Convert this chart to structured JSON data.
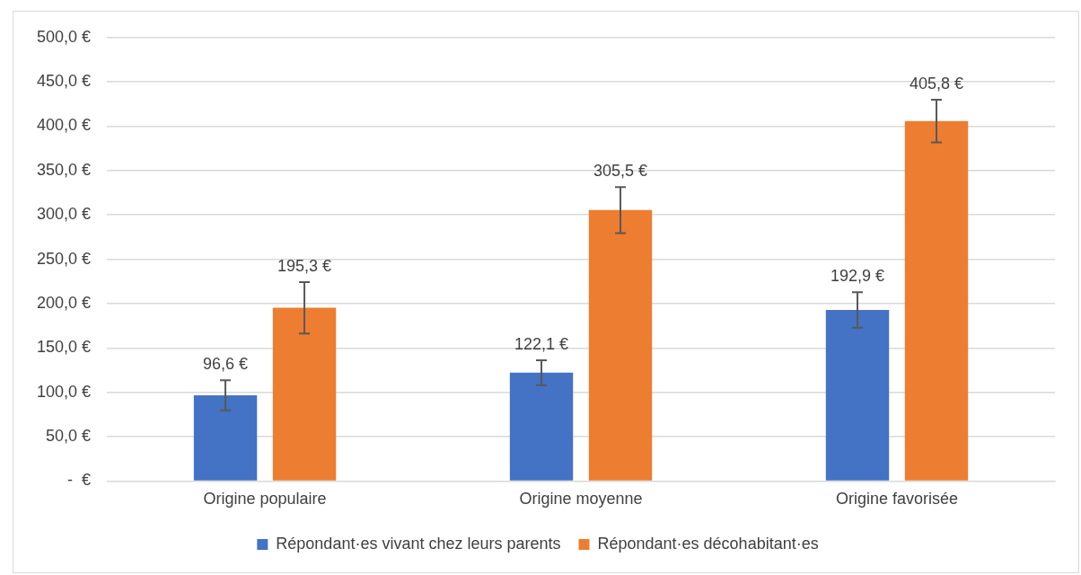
{
  "chart_data": {
    "type": "bar",
    "categories": [
      "Origine populaire",
      "Origine moyenne",
      "Origine favorisée"
    ],
    "series": [
      {
        "name": "Répondant·es vivant chez leurs parents",
        "color": "#4472c4",
        "values": [
          96.6,
          122.1,
          192.9
        ],
        "errors": [
          17,
          14,
          20
        ],
        "value_labels": [
          "96,6 €",
          "122,1 €",
          "192,9 €"
        ]
      },
      {
        "name": "Répondant·es décohabitant·es",
        "color": "#ed7d31",
        "values": [
          195.3,
          305.5,
          405.8
        ],
        "errors": [
          29,
          26,
          24
        ],
        "value_labels": [
          "195,3 €",
          "305,5 €",
          "405,8 €"
        ]
      }
    ],
    "ylim": [
      0,
      500
    ],
    "yticks": [
      {
        "value": 0,
        "label": "-  €"
      },
      {
        "value": 50,
        "label": "50,0 €"
      },
      {
        "value": 100,
        "label": "100,0 €"
      },
      {
        "value": 150,
        "label": "150,0 €"
      },
      {
        "value": 200,
        "label": "200,0 €"
      },
      {
        "value": 250,
        "label": "250,0 €"
      },
      {
        "value": 300,
        "label": "300,0 €"
      },
      {
        "value": 350,
        "label": "350,0 €"
      },
      {
        "value": 400,
        "label": "400,0 €"
      },
      {
        "value": 450,
        "label": "450,0 €"
      },
      {
        "value": 500,
        "label": "500,0 €"
      }
    ],
    "grid": "y",
    "legend": "bottom"
  }
}
